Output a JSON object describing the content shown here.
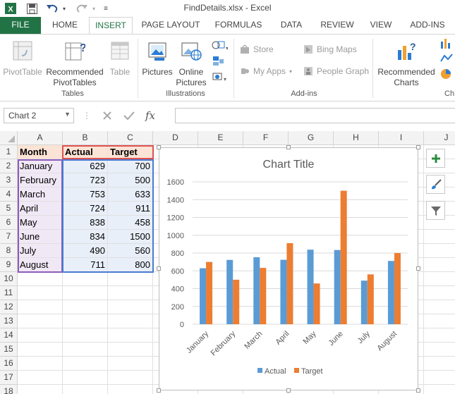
{
  "titlebar": {
    "title": "FindDetails.xlsx - Excel",
    "icons": [
      "excel-logo-icon",
      "save-icon",
      "undo-icon",
      "redo-icon",
      "customize-qat-icon"
    ]
  },
  "tabs": [
    {
      "label": "FILE"
    },
    {
      "label": "HOME"
    },
    {
      "label": "INSERT"
    },
    {
      "label": "PAGE LAYOUT"
    },
    {
      "label": "FORMULAS"
    },
    {
      "label": "DATA"
    },
    {
      "label": "REVIEW"
    },
    {
      "label": "VIEW"
    },
    {
      "label": "ADD-INS"
    }
  ],
  "ribbon": {
    "tables": {
      "pivottable": "PivotTable",
      "recommended_line1": "Recommended",
      "recommended_line2": "PivotTables",
      "table": "Table",
      "group_label": "Tables"
    },
    "illustrations": {
      "pictures": "Pictures",
      "online_line1": "Online",
      "online_line2": "Pictures",
      "group_label": "Illustrations"
    },
    "addins": {
      "store": "Store",
      "my_apps": "My Apps",
      "bing_maps": "Bing Maps",
      "people_graph": "People Graph",
      "group_label": "Add-ins"
    },
    "charts": {
      "recommended_line1": "Recommended",
      "recommended_line2": "Charts",
      "group_label_partial": "Ch"
    }
  },
  "formula_bar": {
    "name_box": "Chart 2",
    "fx": "fx",
    "value": ""
  },
  "sheet": {
    "columns": [
      "A",
      "B",
      "C",
      "D",
      "E",
      "F",
      "G",
      "H",
      "I",
      "J"
    ],
    "rows": [
      "1",
      "2",
      "3",
      "4",
      "5",
      "6",
      "7",
      "8",
      "9",
      "10",
      "11",
      "12",
      "13",
      "14",
      "15",
      "16",
      "17",
      "18"
    ],
    "table": {
      "headers": [
        "Month",
        "Actual",
        "Target"
      ],
      "data": [
        [
          "January",
          "629",
          "700"
        ],
        [
          "February",
          "723",
          "500"
        ],
        [
          "March",
          "753",
          "633"
        ],
        [
          "April",
          "724",
          "911"
        ],
        [
          "May",
          "838",
          "458"
        ],
        [
          "June",
          "834",
          "1500"
        ],
        [
          "July",
          "490",
          "560"
        ],
        [
          "August",
          "711",
          "800"
        ]
      ]
    }
  },
  "chart_data": {
    "type": "bar",
    "title": "Chart Title",
    "categories": [
      "January",
      "February",
      "March",
      "April",
      "May",
      "June",
      "July",
      "August"
    ],
    "series": [
      {
        "name": "Actual",
        "values": [
          629,
          723,
          753,
          724,
          838,
          834,
          490,
          711
        ],
        "color": "#5b9bd5"
      },
      {
        "name": "Target",
        "values": [
          700,
          500,
          633,
          911,
          458,
          1500,
          560,
          800
        ],
        "color": "#ed7d31"
      }
    ],
    "ylim": [
      0,
      1600
    ],
    "yticks": [
      "0",
      "200",
      "400",
      "600",
      "800",
      "1000",
      "1200",
      "1400",
      "1600"
    ],
    "grid": true,
    "legend_position": "bottom"
  },
  "chart_tools": {
    "buttons": [
      "chart-elements-plus-icon",
      "chart-styles-brush-icon",
      "chart-filters-funnel-icon"
    ]
  }
}
